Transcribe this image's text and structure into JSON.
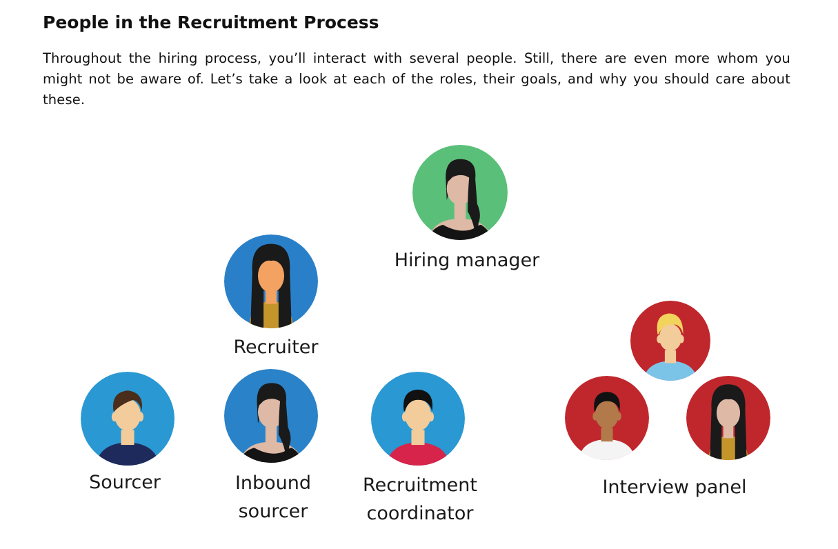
{
  "heading": "People in the Recruitment Process",
  "intro": "Throughout the hiring process, you’ll interact with several people. Still, there are even more whom you might not be aware of. Let’s take a look at each of the roles, their goals, and why you should care about these.",
  "roles": {
    "hiring_manager": {
      "line1": "Hiring manager",
      "avatar_bg": "#5ABF79"
    },
    "recruiter": {
      "line1": "Recruiter",
      "avatar_bg": "#2A7FC9"
    },
    "sourcer": {
      "line1": "Sourcer",
      "avatar_bg": "#2A98D2"
    },
    "inbound_sourcer": {
      "line1": "Inbound",
      "line2": "sourcer",
      "avatar_bg": "#2A82C8"
    },
    "recruitment_coordinator": {
      "line1": "Recruitment",
      "line2": "coordinator",
      "avatar_bg": "#2A98D2"
    },
    "interview_panel": {
      "line1": "Interview panel",
      "avatar_bg": "#C0272D"
    }
  }
}
